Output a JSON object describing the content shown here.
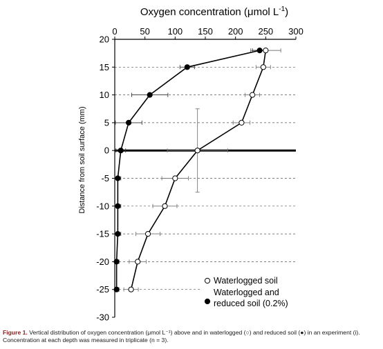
{
  "chart_data": {
    "type": "line",
    "xlabel": "Oxygen concentration (μmol L",
    "xlabel_sup": "-1",
    "xlabel_end": ")",
    "ylabel": "Distance from soil surface (mm)",
    "xlim": [
      0,
      300
    ],
    "ylim": [
      -30,
      20
    ],
    "x_ticks": [
      "0",
      "50",
      "100",
      "150",
      "200",
      "250",
      "300"
    ],
    "y_ticks": [
      "20",
      "15",
      "10",
      "5",
      "0",
      "-5",
      "-10",
      "-15",
      "-20",
      "-25",
      "-30"
    ],
    "x_axis_position": "top",
    "reference_line_y": 0,
    "grid": "dashed horizontal gridlines",
    "legend_position": "bottom-right",
    "series": [
      {
        "name": "Waterlogged soil",
        "marker": "open-circle",
        "points": [
          {
            "x": 250,
            "y": 18,
            "xerr": 25
          },
          {
            "x": 246,
            "y": 15,
            "xerr": 12
          },
          {
            "x": 228,
            "y": 10,
            "xerr": 12
          },
          {
            "x": 210,
            "y": 5,
            "xerr": 14
          },
          {
            "x": 137,
            "y": 0,
            "xerr": 50
          },
          {
            "x": 100,
            "y": -5,
            "xerr": 22
          },
          {
            "x": 83,
            "y": -10,
            "xerr": 20
          },
          {
            "x": 55,
            "y": -15,
            "xerr": 20
          },
          {
            "x": 38,
            "y": -20,
            "xerr": 14
          },
          {
            "x": 27,
            "y": -25,
            "xerr": 12
          }
        ]
      },
      {
        "name": "Waterlogged and reduced soil (0.2%)",
        "legend_lines": [
          "Waterlogged and",
          "reduced soil (0.2%)"
        ],
        "marker": "filled-circle",
        "points": [
          {
            "x": 240,
            "y": 18,
            "xerr": 12
          },
          {
            "x": 120,
            "y": 15,
            "xerr": 12
          },
          {
            "x": 58,
            "y": 10,
            "xerr": 30
          },
          {
            "x": 23,
            "y": 5,
            "xerr": 22
          },
          {
            "x": 10,
            "y": 0,
            "xerr": 8
          },
          {
            "x": 5,
            "y": -5,
            "xerr": 5
          },
          {
            "x": 5,
            "y": -10,
            "xerr": 5
          },
          {
            "x": 5,
            "y": -15,
            "xerr": 5
          },
          {
            "x": 3,
            "y": -20,
            "xerr": 4
          },
          {
            "x": 3,
            "y": -25,
            "xerr": 4
          }
        ]
      }
    ]
  },
  "caption": {
    "label": "Figure 1.",
    "text": " Vertical distribution of oxygen concentration (μmol L⁻¹) above and in waterlogged (○) and reduced soil (●) in an experiment (i). Concentration at each depth was measured in triplicate (n = 3)."
  }
}
